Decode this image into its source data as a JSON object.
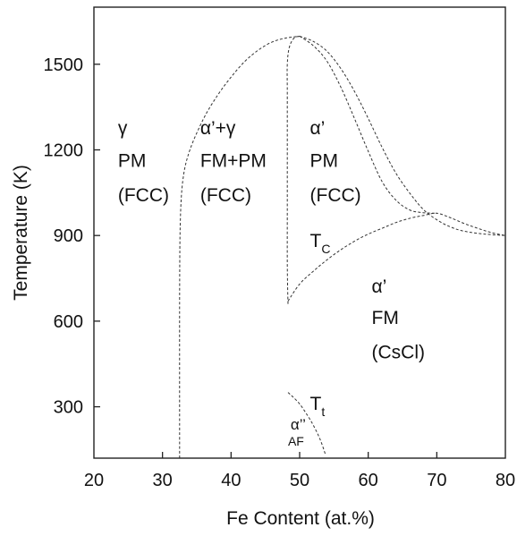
{
  "chart_data": {
    "type": "line",
    "title": "",
    "xlabel": "Fe Content (at.%)",
    "ylabel": "Temperature (K)",
    "xlim": [
      20,
      80
    ],
    "ylim": [
      120,
      1700
    ],
    "x_ticks": [
      20,
      30,
      40,
      50,
      60,
      70,
      80
    ],
    "y_ticks": [
      300,
      600,
      900,
      1200,
      1500
    ],
    "grid": false,
    "legend": "none",
    "line_style": "dashed",
    "series": [
      {
        "id": "outer-gamma-boundary",
        "points": [
          [
            32.5,
            120
          ],
          [
            32.5,
            700
          ],
          [
            32.6,
            950
          ],
          [
            33,
            1100
          ],
          [
            34,
            1200
          ],
          [
            36,
            1310
          ],
          [
            38,
            1390
          ],
          [
            40,
            1455
          ],
          [
            42,
            1510
          ],
          [
            44,
            1550
          ],
          [
            46,
            1578
          ],
          [
            48,
            1592
          ],
          [
            50,
            1598
          ]
        ]
      },
      {
        "id": "alpha-prime-gamma-boundary",
        "points": [
          [
            48.3,
            660
          ],
          [
            48.2,
            800
          ],
          [
            48.2,
            1000
          ],
          [
            48.2,
            1200
          ],
          [
            48.2,
            1400
          ],
          [
            48.2,
            1500
          ],
          [
            48.5,
            1560
          ],
          [
            49.2,
            1592
          ],
          [
            50,
            1598
          ]
        ]
      },
      {
        "id": "upper-dome-boundary",
        "points": [
          [
            50,
            1598
          ],
          [
            52,
            1580
          ],
          [
            54,
            1545
          ],
          [
            56,
            1485
          ],
          [
            58,
            1405
          ],
          [
            60,
            1310
          ],
          [
            62,
            1210
          ],
          [
            64,
            1120
          ],
          [
            66,
            1050
          ],
          [
            68,
            992
          ],
          [
            70,
            955
          ],
          [
            72,
            930
          ],
          [
            74,
            915
          ],
          [
            77,
            905
          ],
          [
            80,
            900
          ]
        ]
      },
      {
        "id": "inner-dome-boundary",
        "points": [
          [
            50,
            1598
          ],
          [
            52,
            1565
          ],
          [
            54,
            1510
          ],
          [
            56,
            1420
          ],
          [
            58,
            1310
          ],
          [
            60,
            1195
          ],
          [
            62,
            1090
          ],
          [
            64,
            1025
          ],
          [
            66,
            990
          ],
          [
            68,
            980
          ],
          [
            70,
            978
          ]
        ]
      },
      {
        "id": "curie-temperature-line",
        "points": [
          [
            48.3,
            670
          ],
          [
            50,
            730
          ],
          [
            52,
            775
          ],
          [
            54,
            815
          ],
          [
            56,
            850
          ],
          [
            58,
            880
          ],
          [
            60,
            905
          ],
          [
            62,
            925
          ],
          [
            64,
            945
          ],
          [
            66,
            960
          ],
          [
            68,
            970
          ],
          [
            70,
            978
          ],
          [
            72,
            962
          ],
          [
            74,
            942
          ],
          [
            76,
            925
          ],
          [
            78,
            910
          ],
          [
            80,
            900
          ]
        ]
      },
      {
        "id": "transition-temperature-line",
        "points": [
          [
            48.3,
            350
          ],
          [
            49,
            335
          ],
          [
            50,
            310
          ],
          [
            51,
            275
          ],
          [
            52,
            235
          ],
          [
            53,
            185
          ],
          [
            53.8,
            130
          ]
        ]
      }
    ],
    "regions": [
      {
        "id": "gamma-pm-fcc",
        "lines": [
          "γ",
          "PM",
          "(FCC)"
        ],
        "x": 23.5,
        "y": [
          1255,
          1140,
          1020
        ]
      },
      {
        "id": "alpha-gamma-fm-pm-fcc",
        "lines": [
          "α’+γ",
          "FM+PM",
          "(FCC)"
        ],
        "x": 35.5,
        "y": [
          1255,
          1140,
          1020
        ]
      },
      {
        "id": "alpha-prime-pm-fcc",
        "lines": [
          "α’",
          "PM",
          "(FCC)"
        ],
        "x": 51.5,
        "y": [
          1255,
          1140,
          1020
        ]
      },
      {
        "id": "alpha-prime-fm-cscl",
        "lines": [
          "α’",
          "FM",
          "(CsCl)"
        ],
        "x": 60.5,
        "y": [
          700,
          590,
          470
        ]
      }
    ],
    "annotations": [
      {
        "id": "tc-label",
        "main": "T",
        "sub": "C",
        "x": 51.5,
        "y": 860
      },
      {
        "id": "tt-label",
        "main": "T",
        "sub": "t",
        "x": 51.5,
        "y": 290
      },
      {
        "id": "alpha-af-label",
        "main": "α’’",
        "sub": "AF",
        "x": 48.3,
        "y": 220
      }
    ]
  }
}
